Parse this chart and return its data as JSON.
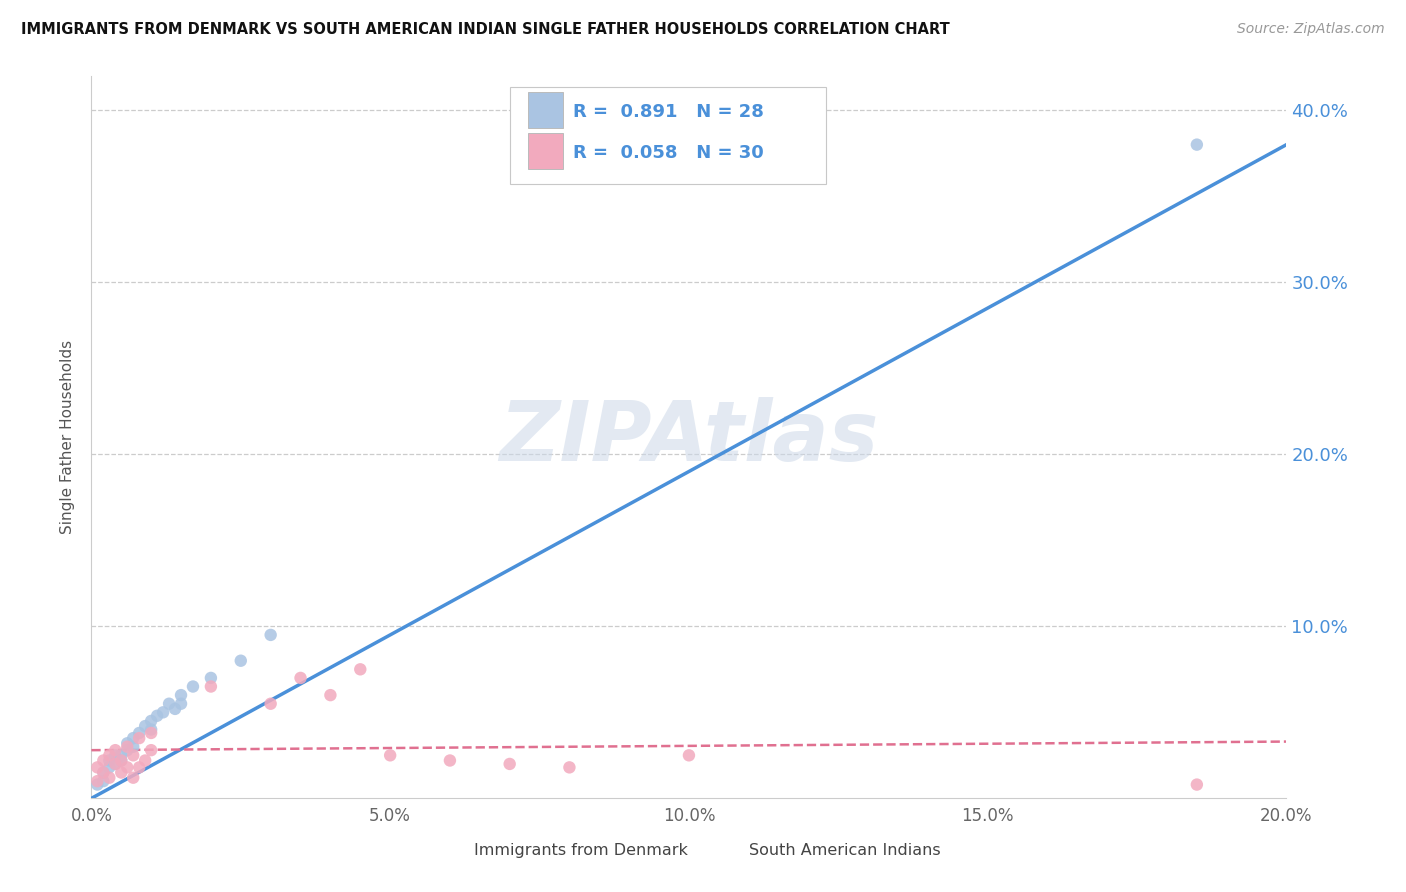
{
  "title": "IMMIGRANTS FROM DENMARK VS SOUTH AMERICAN INDIAN SINGLE FATHER HOUSEHOLDS CORRELATION CHART",
  "source": "Source: ZipAtlas.com",
  "ylabel": "Single Father Households",
  "xlim": [
    0.0,
    0.2
  ],
  "ylim": [
    0.0,
    0.42
  ],
  "xtick_labels": [
    "0.0%",
    "5.0%",
    "10.0%",
    "15.0%",
    "20.0%"
  ],
  "xtick_vals": [
    0.0,
    0.05,
    0.1,
    0.15,
    0.2
  ],
  "ytick_labels": [
    "10.0%",
    "20.0%",
    "30.0%",
    "40.0%"
  ],
  "ytick_vals": [
    0.1,
    0.2,
    0.3,
    0.4
  ],
  "series1_color": "#aac4e2",
  "series2_color": "#f2aabe",
  "series1_line_color": "#4a90d9",
  "series2_line_color": "#e07090",
  "series1_R": 0.891,
  "series1_N": 28,
  "series2_R": 0.058,
  "series2_N": 30,
  "series1_label": "Immigrants from Denmark",
  "series2_label": "South American Indians",
  "watermark": "ZIPAtlas",
  "line1_x0": 0.0,
  "line1_y0": 0.0,
  "line1_x1": 0.2,
  "line1_y1": 0.38,
  "line2_x0": 0.0,
  "line2_y0": 0.028,
  "line2_x1": 0.2,
  "line2_y1": 0.033,
  "series1_x": [
    0.001,
    0.002,
    0.002,
    0.003,
    0.003,
    0.004,
    0.004,
    0.005,
    0.005,
    0.006,
    0.006,
    0.007,
    0.007,
    0.008,
    0.009,
    0.01,
    0.01,
    0.011,
    0.012,
    0.013,
    0.014,
    0.015,
    0.015,
    0.017,
    0.02,
    0.025,
    0.03,
    0.185
  ],
  "series1_y": [
    0.008,
    0.01,
    0.015,
    0.018,
    0.022,
    0.02,
    0.025,
    0.022,
    0.025,
    0.028,
    0.032,
    0.03,
    0.035,
    0.038,
    0.042,
    0.04,
    0.045,
    0.048,
    0.05,
    0.055,
    0.052,
    0.06,
    0.055,
    0.065,
    0.07,
    0.08,
    0.095,
    0.38
  ],
  "series2_x": [
    0.001,
    0.001,
    0.002,
    0.002,
    0.003,
    0.003,
    0.004,
    0.004,
    0.005,
    0.005,
    0.006,
    0.006,
    0.007,
    0.007,
    0.008,
    0.008,
    0.009,
    0.01,
    0.01,
    0.02,
    0.03,
    0.035,
    0.04,
    0.045,
    0.05,
    0.06,
    0.07,
    0.08,
    0.1,
    0.185
  ],
  "series2_y": [
    0.01,
    0.018,
    0.015,
    0.022,
    0.012,
    0.025,
    0.02,
    0.028,
    0.015,
    0.022,
    0.018,
    0.03,
    0.012,
    0.025,
    0.018,
    0.035,
    0.022,
    0.038,
    0.028,
    0.065,
    0.055,
    0.07,
    0.06,
    0.075,
    0.025,
    0.022,
    0.02,
    0.018,
    0.025,
    0.008
  ]
}
